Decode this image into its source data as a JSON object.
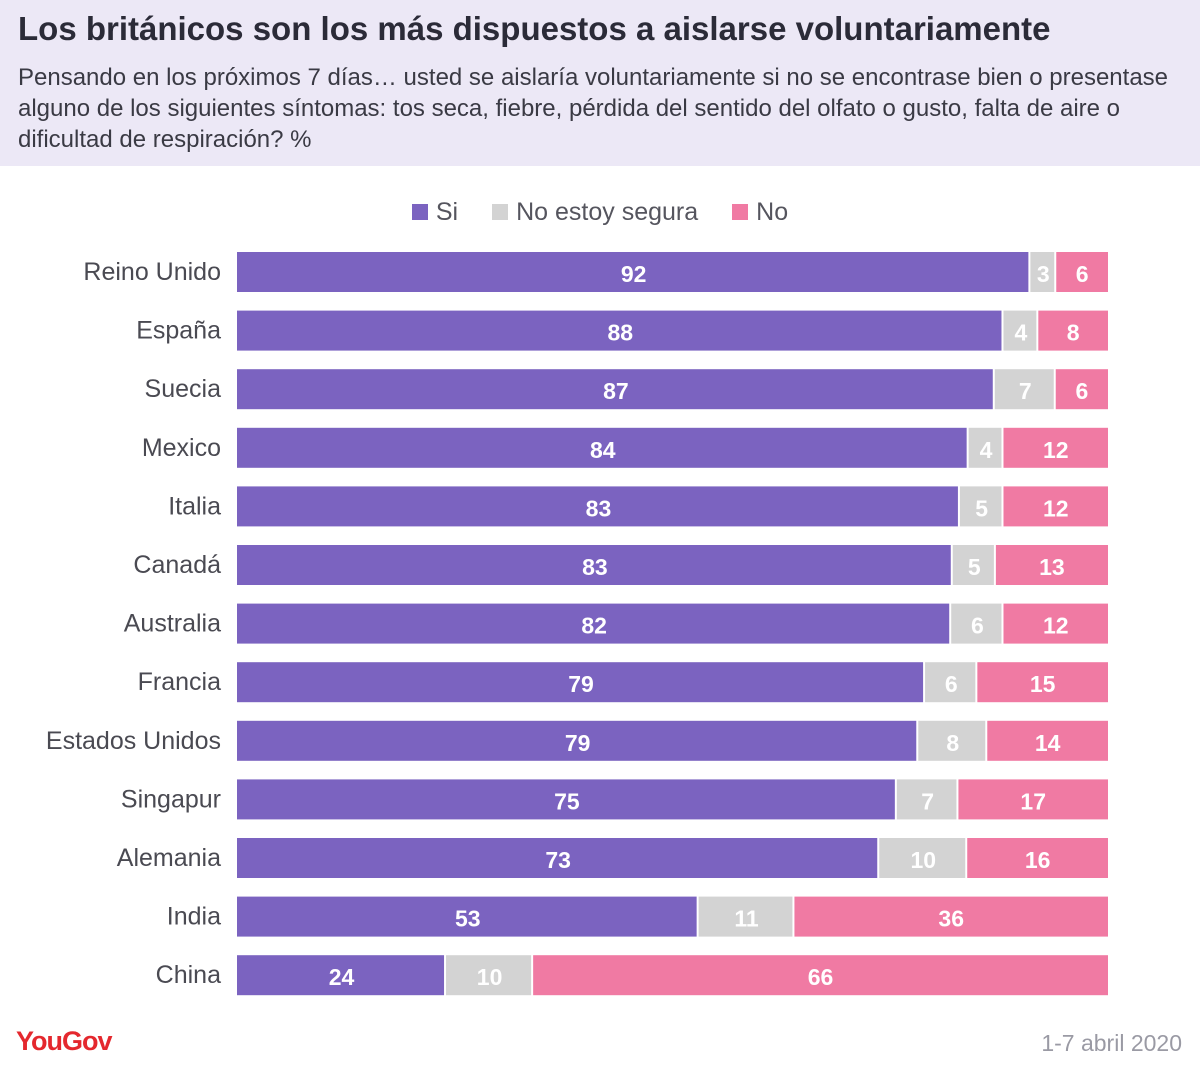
{
  "header": {
    "title": "Los británicos son los más dispuestos a aislarse voluntariamente",
    "subtitle": "Pensando en los próximos 7 días… usted se aislaría voluntariamente si no se encontrase bien o presentase alguno de los siguientes síntomas: tos seca, fiebre, pérdida del sentido del olfato o gusto, falta de aire o dificultad de respiración? %"
  },
  "footer": {
    "logo": "YouGov",
    "date": "1-7 abril 2020"
  },
  "colors": {
    "si": "#7b63c0",
    "no_segura": "#d3d3d3",
    "no": "#f07aa3",
    "label_text": "#ffffff",
    "category_text": "#4a4a52"
  },
  "chart_data": {
    "type": "bar",
    "orientation": "horizontal",
    "stacked": true,
    "legend_position": "top-center",
    "xlim": [
      0,
      100
    ],
    "categories": [
      "Reino Unido",
      "España",
      "Suecia",
      "Mexico",
      "Italia",
      "Canadá",
      "Australia",
      "Francia",
      "Estados Unidos",
      "Singapur",
      "Alemania",
      "India",
      "China"
    ],
    "series": [
      {
        "name": "Si",
        "color": "#7b63c0",
        "values": [
          92,
          88,
          87,
          84,
          83,
          83,
          82,
          79,
          79,
          75,
          73,
          53,
          24
        ]
      },
      {
        "name": "No estoy segura",
        "color": "#d3d3d3",
        "values": [
          3,
          4,
          7,
          4,
          5,
          5,
          6,
          6,
          8,
          7,
          10,
          11,
          10
        ]
      },
      {
        "name": "No",
        "color": "#f07aa3",
        "values": [
          6,
          8,
          6,
          12,
          12,
          13,
          12,
          15,
          14,
          17,
          16,
          36,
          66
        ]
      }
    ]
  }
}
